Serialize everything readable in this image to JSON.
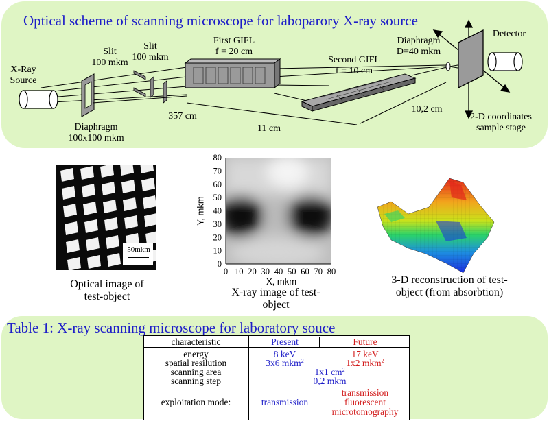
{
  "scheme": {
    "title": "Optical scheme of scanning microscope for laboparory X-ray source",
    "xray_source": [
      "X-Ray",
      "Source"
    ],
    "slit1": [
      "Slit",
      "100 mkm"
    ],
    "slit2": [
      "Slit",
      "100 mkm"
    ],
    "first_gifl": [
      "First GIFL",
      "f = 20 cm"
    ],
    "second_gifl": [
      "Second GIFL",
      "f = 10 cm"
    ],
    "diaphragm_top": [
      "Diaphragm",
      "D=40 mkm"
    ],
    "detector": "Detector",
    "diaphragm_bottom": [
      "Diaphragm",
      "100x100 mkm"
    ],
    "dist_357": "357 cm",
    "dist_11": "11 cm",
    "dist_10": "10,2 cm",
    "stage": [
      "2-D coordinates",
      "sample stage"
    ]
  },
  "images": {
    "optical_caption": [
      "Optical image of",
      "test-object"
    ],
    "scale_bar_label": "50mkm",
    "xray_caption": [
      "X-ray image of test-",
      "object"
    ],
    "xray_axes": {
      "xlabel": "X, mkm",
      "ylabel": "Y, mkm",
      "xticks": [
        "0",
        "10",
        "20",
        "30",
        "40",
        "50",
        "60",
        "70",
        "80"
      ],
      "yticks": [
        "80",
        "70",
        "60",
        "50",
        "40",
        "30",
        "20",
        "10",
        "0"
      ]
    },
    "recon_caption": [
      "3-D reconstruction of test-",
      "object (from absorbtion)"
    ]
  },
  "table": {
    "title": "Table 1: X-ray scanning microscope for laboratory souce",
    "header": {
      "characteristic": "characteristic",
      "present": "Present",
      "future": "Future"
    },
    "rows": [
      {
        "name": "energy",
        "present": "8 keV",
        "future": "17 keV"
      },
      {
        "name": "spatial resilution",
        "present": "3x6 mkm",
        "present_sup": "2",
        "future": "1x2 mkm",
        "future_sup": "2"
      },
      {
        "name": "scanning area",
        "both": "1x1 cm",
        "both_sup": "2"
      },
      {
        "name": "scanning step",
        "both": "0,2 mkm"
      },
      {
        "name": "exploitation mode:",
        "present": "transmission",
        "future": [
          "transmission",
          "fluorescent",
          "microtomography"
        ]
      }
    ]
  },
  "colors": {
    "panel": "#dff5c4",
    "title_blue": "#1d1dc8",
    "future_red": "#d21b1b"
  }
}
